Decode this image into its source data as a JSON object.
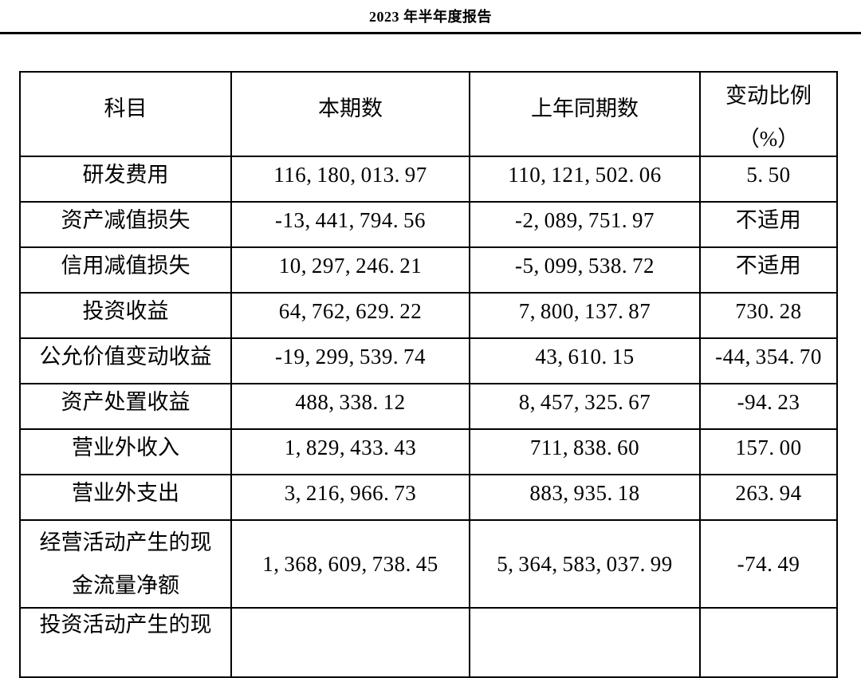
{
  "page": {
    "title": "2023 年半年度报告"
  },
  "table": {
    "columns": [
      {
        "label": "科目"
      },
      {
        "label": "本期数"
      },
      {
        "label": "上年同期数"
      },
      {
        "label": "变动比例",
        "sub": "（%）"
      }
    ],
    "rows": [
      {
        "subject": "研发费用",
        "current": "116,180,013.97",
        "prior": "110,121,502.06",
        "change": "5.50"
      },
      {
        "subject": "资产减值损失",
        "current": "-13,441,794.56",
        "prior": "-2,089,751.97",
        "change": "不适用"
      },
      {
        "subject": "信用减值损失",
        "current": "10,297,246.21",
        "prior": "-5,099,538.72",
        "change": "不适用"
      },
      {
        "subject": "投资收益",
        "current": "64,762,629.22",
        "prior": "7,800,137.87",
        "change": "730.28"
      },
      {
        "subject": "公允价值变动收益",
        "current": "-19,299,539.74",
        "prior": "43,610.15",
        "change": "-44,354.70"
      },
      {
        "subject": "资产处置收益",
        "current": "488,338.12",
        "prior": "8,457,325.67",
        "change": "-94.23"
      },
      {
        "subject": "营业外收入",
        "current": "1,829,433.43",
        "prior": "711,838.60",
        "change": "157.00"
      },
      {
        "subject": "营业外支出",
        "current": "3,216,966.73",
        "prior": "883,935.18",
        "change": "263.94"
      },
      {
        "subject": "经营活动产生的现金流量净额",
        "subject_lines": [
          "经营活动产生的现",
          "金流量净额"
        ],
        "current": "1,368,609,738.45",
        "prior": "5,364,583,037.99",
        "change": "-74.49"
      },
      {
        "subject": "投资活动产生的现",
        "partial": true,
        "current": "",
        "prior": "",
        "change": ""
      }
    ]
  },
  "colors": {
    "text": "#000000",
    "background": "#ffffff",
    "border": "#000000"
  }
}
